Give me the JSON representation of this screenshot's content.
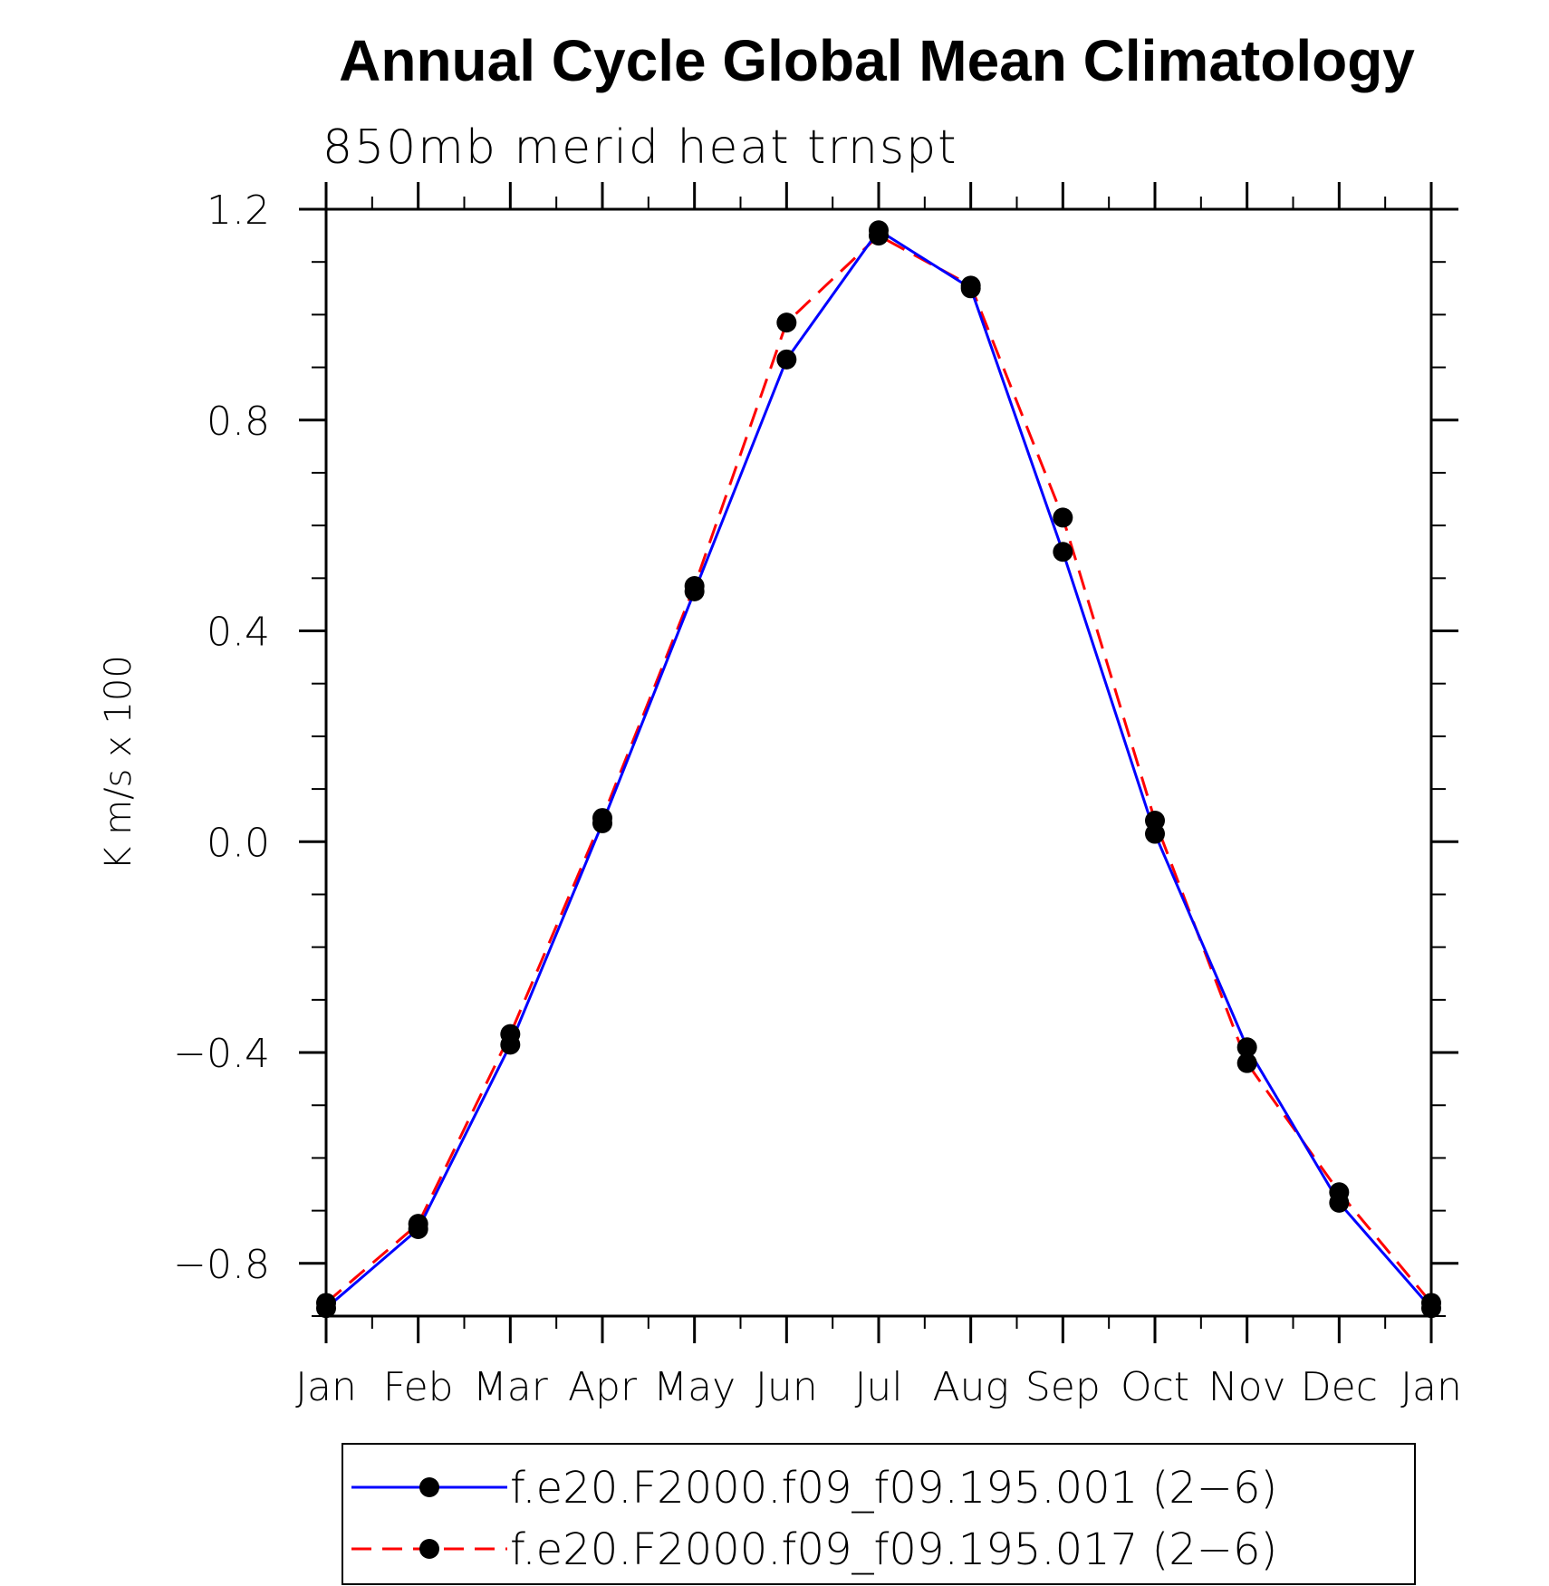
{
  "chart_data": {
    "type": "line",
    "title": "Annual Cycle Global Mean Climatology",
    "subtitle": "850mb merid heat trnspt",
    "ylabel": "K m/s x 100",
    "xlabel": "",
    "categories": [
      "Jan",
      "Feb",
      "Mar",
      "Apr",
      "May",
      "Jun",
      "Jul",
      "Aug",
      "Sep",
      "Oct",
      "Nov",
      "Dec",
      "Jan"
    ],
    "ylim": [
      -0.9,
      1.2
    ],
    "yticks": [
      -0.8,
      -0.4,
      0.0,
      0.4,
      0.8,
      1.2
    ],
    "ytick_labels": [
      "−0.8",
      "−0.4",
      "0.0",
      "0.4",
      "0.8",
      "1.2"
    ],
    "grid": false,
    "legend_position": "bottom",
    "series": [
      {
        "name": "f.e20.F2000.f09_f09.195.001 (2−6)",
        "color": "#0000ff",
        "style": "solid",
        "marker": "filled-circle",
        "values": [
          -0.885,
          -0.735,
          -0.385,
          0.035,
          0.475,
          0.915,
          1.16,
          1.05,
          0.55,
          0.015,
          -0.39,
          -0.685,
          -0.885
        ]
      },
      {
        "name": "f.e20.F2000.f09_f09.195.017 (2−6)",
        "color": "#ff0000",
        "style": "dashed",
        "marker": "filled-circle",
        "values": [
          -0.875,
          -0.725,
          -0.365,
          0.045,
          0.485,
          0.985,
          1.15,
          1.055,
          0.615,
          0.04,
          -0.42,
          -0.665,
          -0.875
        ]
      }
    ]
  }
}
